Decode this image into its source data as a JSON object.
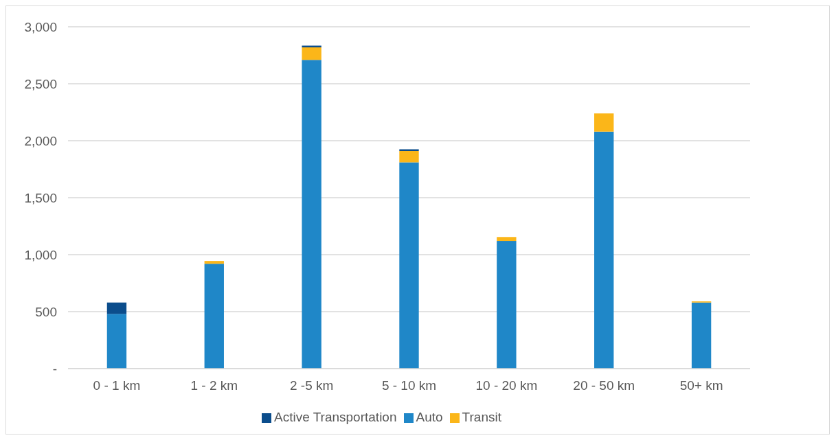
{
  "chart_data": {
    "type": "bar",
    "stacked": true,
    "categories": [
      "0 - 1 km",
      "1 - 2 km",
      "2 -5 km",
      "5 - 10 km",
      "10 - 20 km",
      "20 - 50 km",
      "50+ km"
    ],
    "series": [
      {
        "name": "Auto",
        "color": "#1f87c8",
        "values": [
          480,
          920,
          2710,
          1810,
          1120,
          2080,
          580
        ]
      },
      {
        "name": "Transit",
        "color": "#fbb619",
        "values": [
          0,
          25,
          110,
          100,
          35,
          160,
          10
        ]
      },
      {
        "name": "Active Transportation",
        "color": "#0b4d8c",
        "values": [
          100,
          0,
          15,
          15,
          0,
          0,
          0
        ]
      }
    ],
    "ylim": [
      0,
      3000
    ],
    "yticks": [
      {
        "value": 0,
        "label": "-"
      },
      {
        "value": 500,
        "label": "500"
      },
      {
        "value": 1000,
        "label": "1,000"
      },
      {
        "value": 1500,
        "label": "1,500"
      },
      {
        "value": 2000,
        "label": "2,000"
      },
      {
        "value": 2500,
        "label": "2,500"
      },
      {
        "value": 3000,
        "label": "3,000"
      }
    ],
    "grid": "y",
    "legend": "bottom"
  }
}
